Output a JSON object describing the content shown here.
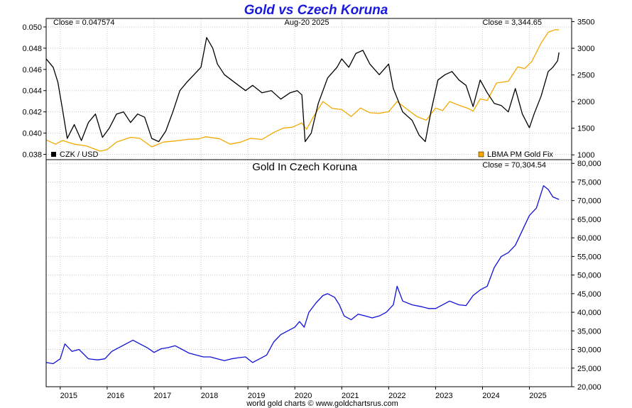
{
  "title": "Gold vs Czech Koruna",
  "credit": "world gold charts © www.goldchartsrus.com",
  "colors": {
    "title": "#1a1adb",
    "czk": "#000000",
    "gold_usd": "#f2a900",
    "gold_czk": "#1010d8",
    "grid": "#c8c8c8"
  },
  "chart_data": [
    {
      "type": "line",
      "panel": "top",
      "annotations": {
        "left_close": "Close = 0.047574",
        "center_date": "Aug-20  2025",
        "right_close": "Close = 3,344.65"
      },
      "left_axis": {
        "ylim": [
          0.0375,
          0.0508
        ],
        "ticks": [
          "0.050",
          "0.048",
          "0.046",
          "0.044",
          "0.042",
          "0.040",
          "0.038"
        ]
      },
      "right_axis": {
        "ylim": [
          910,
          3560
        ],
        "ticks": [
          "3500",
          "3000",
          "2500",
          "2000",
          "1500",
          "1000"
        ]
      },
      "legend": [
        {
          "label": "CZK / USD",
          "position": "bottom-left"
        },
        {
          "label": "LBMA PM Gold Fix",
          "position": "bottom-right"
        }
      ],
      "grid": true,
      "xlim": [
        2014.7,
        2025.9
      ],
      "series": [
        {
          "name": "CZK / USD",
          "axis": "left",
          "points": [
            [
              2014.7,
              0.047
            ],
            [
              2014.85,
              0.0462
            ],
            [
              2014.95,
              0.0448
            ],
            [
              2015.05,
              0.0422
            ],
            [
              2015.15,
              0.0395
            ],
            [
              2015.3,
              0.0408
            ],
            [
              2015.45,
              0.0393
            ],
            [
              2015.6,
              0.041
            ],
            [
              2015.75,
              0.0418
            ],
            [
              2015.9,
              0.0396
            ],
            [
              2016.05,
              0.0405
            ],
            [
              2016.2,
              0.0418
            ],
            [
              2016.35,
              0.042
            ],
            [
              2016.5,
              0.041
            ],
            [
              2016.65,
              0.0418
            ],
            [
              2016.8,
              0.0415
            ],
            [
              2016.95,
              0.0395
            ],
            [
              2017.1,
              0.0392
            ],
            [
              2017.25,
              0.0402
            ],
            [
              2017.4,
              0.042
            ],
            [
              2017.55,
              0.044
            ],
            [
              2017.7,
              0.0448
            ],
            [
              2017.85,
              0.0455
            ],
            [
              2018.0,
              0.0462
            ],
            [
              2018.12,
              0.049
            ],
            [
              2018.25,
              0.048
            ],
            [
              2018.35,
              0.0465
            ],
            [
              2018.5,
              0.0455
            ],
            [
              2018.65,
              0.045
            ],
            [
              2018.8,
              0.0445
            ],
            [
              2018.95,
              0.044
            ],
            [
              2019.1,
              0.0445
            ],
            [
              2019.3,
              0.0438
            ],
            [
              2019.5,
              0.044
            ],
            [
              2019.7,
              0.0432
            ],
            [
              2019.9,
              0.0438
            ],
            [
              2020.05,
              0.044
            ],
            [
              2020.15,
              0.0436
            ],
            [
              2020.22,
              0.0392
            ],
            [
              2020.35,
              0.04
            ],
            [
              2020.5,
              0.0428
            ],
            [
              2020.7,
              0.0452
            ],
            [
              2020.9,
              0.0462
            ],
            [
              2021.0,
              0.047
            ],
            [
              2021.15,
              0.0462
            ],
            [
              2021.3,
              0.0475
            ],
            [
              2021.45,
              0.0478
            ],
            [
              2021.6,
              0.0465
            ],
            [
              2021.8,
              0.0455
            ],
            [
              2022.0,
              0.0465
            ],
            [
              2022.1,
              0.0442
            ],
            [
              2022.3,
              0.042
            ],
            [
              2022.5,
              0.0412
            ],
            [
              2022.65,
              0.0398
            ],
            [
              2022.78,
              0.0392
            ],
            [
              2022.9,
              0.042
            ],
            [
              2023.05,
              0.045
            ],
            [
              2023.2,
              0.0455
            ],
            [
              2023.35,
              0.0458
            ],
            [
              2023.5,
              0.045
            ],
            [
              2023.65,
              0.0445
            ],
            [
              2023.8,
              0.0425
            ],
            [
              2023.95,
              0.045
            ],
            [
              2024.1,
              0.0438
            ],
            [
              2024.25,
              0.0428
            ],
            [
              2024.4,
              0.0426
            ],
            [
              2024.55,
              0.042
            ],
            [
              2024.7,
              0.0442
            ],
            [
              2024.85,
              0.0418
            ],
            [
              2025.0,
              0.0405
            ],
            [
              2025.1,
              0.0418
            ],
            [
              2025.25,
              0.0435
            ],
            [
              2025.4,
              0.0458
            ],
            [
              2025.5,
              0.0462
            ],
            [
              2025.6,
              0.0468
            ],
            [
              2025.63,
              0.0476
            ]
          ]
        },
        {
          "name": "LBMA PM Gold Fix",
          "axis": "right",
          "points": [
            [
              2014.7,
              1280
            ],
            [
              2014.9,
              1200
            ],
            [
              2015.05,
              1270
            ],
            [
              2015.3,
              1200
            ],
            [
              2015.55,
              1170
            ],
            [
              2015.85,
              1070
            ],
            [
              2016.0,
              1100
            ],
            [
              2016.2,
              1240
            ],
            [
              2016.5,
              1330
            ],
            [
              2016.7,
              1310
            ],
            [
              2016.95,
              1150
            ],
            [
              2017.2,
              1240
            ],
            [
              2017.45,
              1260
            ],
            [
              2017.7,
              1290
            ],
            [
              2017.95,
              1300
            ],
            [
              2018.1,
              1340
            ],
            [
              2018.4,
              1300
            ],
            [
              2018.62,
              1200
            ],
            [
              2018.85,
              1240
            ],
            [
              2019.05,
              1310
            ],
            [
              2019.3,
              1290
            ],
            [
              2019.55,
              1420
            ],
            [
              2019.75,
              1500
            ],
            [
              2019.95,
              1520
            ],
            [
              2020.15,
              1600
            ],
            [
              2020.25,
              1480
            ],
            [
              2020.4,
              1720
            ],
            [
              2020.6,
              2000
            ],
            [
              2020.8,
              1870
            ],
            [
              2021.0,
              1850
            ],
            [
              2021.2,
              1720
            ],
            [
              2021.4,
              1880
            ],
            [
              2021.6,
              1790
            ],
            [
              2021.8,
              1780
            ],
            [
              2022.0,
              1810
            ],
            [
              2022.18,
              2000
            ],
            [
              2022.4,
              1850
            ],
            [
              2022.6,
              1720
            ],
            [
              2022.8,
              1650
            ],
            [
              2023.0,
              1880
            ],
            [
              2023.15,
              1830
            ],
            [
              2023.3,
              2000
            ],
            [
              2023.5,
              1930
            ],
            [
              2023.7,
              1870
            ],
            [
              2023.8,
              1820
            ],
            [
              2023.95,
              2050
            ],
            [
              2024.1,
              2020
            ],
            [
              2024.3,
              2350
            ],
            [
              2024.55,
              2380
            ],
            [
              2024.75,
              2650
            ],
            [
              2024.9,
              2620
            ],
            [
              2025.05,
              2750
            ],
            [
              2025.25,
              3100
            ],
            [
              2025.4,
              3300
            ],
            [
              2025.55,
              3350
            ],
            [
              2025.63,
              3345
            ]
          ]
        }
      ]
    },
    {
      "type": "line",
      "panel": "bottom",
      "title": "Gold In Czech Koruna",
      "annotations": {
        "right_close": "Close = 70,304.54"
      },
      "xlim": [
        2014.7,
        2025.9
      ],
      "x_ticks": [
        "2015",
        "2016",
        "2017",
        "2018",
        "2019",
        "2020",
        "2021",
        "2022",
        "2023",
        "2024",
        "2025"
      ],
      "right_axis": {
        "ylim": [
          20000,
          81000
        ],
        "ticks": [
          "80,000",
          "75,000",
          "70,000",
          "65,000",
          "60,000",
          "55,000",
          "50,000",
          "45,000",
          "40,000",
          "35,000",
          "30,000",
          "25,000",
          "20,000"
        ]
      },
      "grid": true,
      "series": [
        {
          "name": "",
          "points": [
            [
              2014.7,
              26500
            ],
            [
              2014.85,
              26200
            ],
            [
              2015.0,
              27500
            ],
            [
              2015.1,
              31500
            ],
            [
              2015.25,
              29500
            ],
            [
              2015.4,
              30000
            ],
            [
              2015.6,
              27500
            ],
            [
              2015.8,
              27200
            ],
            [
              2015.95,
              27500
            ],
            [
              2016.1,
              29500
            ],
            [
              2016.25,
              30500
            ],
            [
              2016.4,
              31500
            ],
            [
              2016.55,
              32500
            ],
            [
              2016.7,
              31500
            ],
            [
              2016.85,
              30500
            ],
            [
              2017.0,
              29200
            ],
            [
              2017.15,
              30200
            ],
            [
              2017.3,
              30500
            ],
            [
              2017.45,
              31000
            ],
            [
              2017.6,
              30000
            ],
            [
              2017.75,
              29000
            ],
            [
              2017.9,
              28500
            ],
            [
              2018.05,
              28000
            ],
            [
              2018.2,
              28000
            ],
            [
              2018.35,
              27500
            ],
            [
              2018.5,
              27000
            ],
            [
              2018.65,
              27500
            ],
            [
              2018.8,
              27800
            ],
            [
              2018.95,
              28000
            ],
            [
              2019.1,
              26500
            ],
            [
              2019.25,
              27500
            ],
            [
              2019.4,
              28500
            ],
            [
              2019.55,
              32000
            ],
            [
              2019.7,
              34000
            ],
            [
              2019.85,
              35000
            ],
            [
              2020.0,
              36000
            ],
            [
              2020.1,
              37500
            ],
            [
              2020.2,
              36000
            ],
            [
              2020.3,
              40000
            ],
            [
              2020.45,
              42500
            ],
            [
              2020.6,
              44500
            ],
            [
              2020.7,
              45000
            ],
            [
              2020.85,
              44000
            ],
            [
              2020.95,
              42000
            ],
            [
              2021.05,
              39000
            ],
            [
              2021.2,
              38000
            ],
            [
              2021.35,
              39500
            ],
            [
              2021.5,
              39000
            ],
            [
              2021.65,
              38500
            ],
            [
              2021.8,
              39000
            ],
            [
              2021.95,
              40000
            ],
            [
              2022.1,
              42000
            ],
            [
              2022.18,
              47000
            ],
            [
              2022.3,
              43000
            ],
            [
              2022.5,
              42000
            ],
            [
              2022.7,
              41500
            ],
            [
              2022.85,
              41000
            ],
            [
              2023.0,
              41000
            ],
            [
              2023.15,
              42000
            ],
            [
              2023.3,
              43000
            ],
            [
              2023.5,
              42000
            ],
            [
              2023.65,
              41800
            ],
            [
              2023.8,
              44500
            ],
            [
              2023.95,
              46000
            ],
            [
              2024.1,
              47000
            ],
            [
              2024.25,
              52000
            ],
            [
              2024.4,
              55000
            ],
            [
              2024.55,
              56000
            ],
            [
              2024.7,
              58000
            ],
            [
              2024.85,
              62000
            ],
            [
              2025.0,
              66000
            ],
            [
              2025.15,
              68000
            ],
            [
              2025.3,
              74000
            ],
            [
              2025.4,
              73000
            ],
            [
              2025.5,
              71000
            ],
            [
              2025.63,
              70304
            ]
          ]
        }
      ]
    }
  ]
}
